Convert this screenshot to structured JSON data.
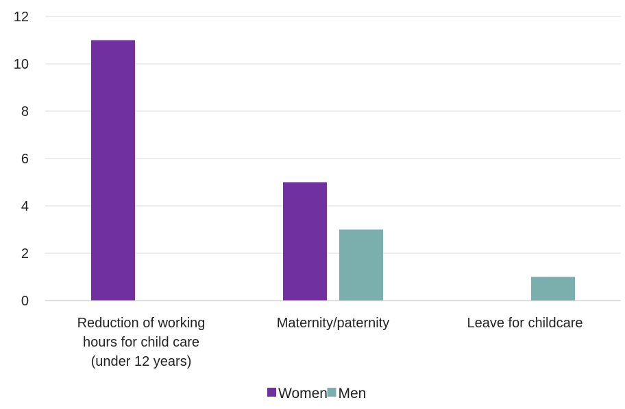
{
  "chart_data": {
    "type": "bar",
    "categories": [
      [
        "Reduction of working",
        "hours for child care",
        "(under 12 years)"
      ],
      [
        "Maternity/paternity"
      ],
      [
        "Leave for childcare"
      ]
    ],
    "series": [
      {
        "name": "Women",
        "color": "#7030a0",
        "values": [
          11,
          5,
          null
        ]
      },
      {
        "name": "Men",
        "color": "#7aafad",
        "values": [
          null,
          3,
          1
        ]
      }
    ],
    "ylim": [
      0,
      12
    ],
    "yticks": [
      0,
      2,
      4,
      6,
      8,
      10,
      12
    ],
    "grid": true,
    "legend_position": "bottom"
  }
}
